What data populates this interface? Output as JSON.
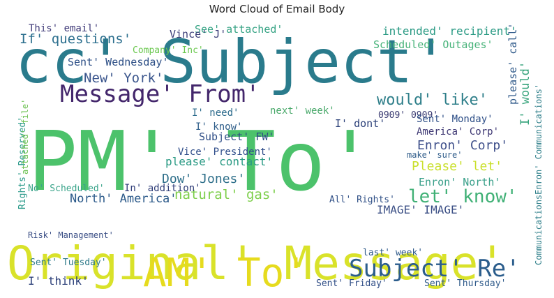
{
  "chart_data": {
    "type": "wordcloud",
    "title": "Word Cloud of Email Body",
    "words": [
      {
        "text": "cc' Subject'",
        "size": 86,
        "color": "#2a7b8c"
      },
      {
        "text": "PM' To'",
        "size": 118,
        "color": "#4cc26b"
      },
      {
        "text": "Original' Message'",
        "size": 66,
        "color": "#d9e22a"
      },
      {
        "text": "AM' To'",
        "size": 56,
        "color": "#e6db1e"
      },
      {
        "text": "Message' From'",
        "size": 34,
        "color": "#43266b"
      },
      {
        "text": "Subject' Re'",
        "size": 34,
        "color": "#2b5d8c"
      },
      {
        "text": "let' know'",
        "size": 26,
        "color": "#3fb075"
      },
      {
        "text": "would' like'",
        "size": 22,
        "color": "#2f7f8a"
      },
      {
        "text": "Enron' Corp'",
        "size": 18,
        "color": "#3e4f8a"
      },
      {
        "text": "Please' let'",
        "size": 18,
        "color": "#c9df2a"
      },
      {
        "text": "natural' gas'",
        "size": 19,
        "color": "#7cce49"
      },
      {
        "text": "Dow' Jones'",
        "size": 18,
        "color": "#2e6f8a"
      },
      {
        "text": "North' America'",
        "size": 17,
        "color": "#2c5a8a"
      },
      {
        "text": "IMAGE' IMAGE'",
        "size": 16,
        "color": "#3b4f85"
      },
      {
        "text": "New' York'",
        "size": 19,
        "color": "#3a558c"
      },
      {
        "text": "If' questions'",
        "size": 19,
        "color": "#2c6f8e"
      },
      {
        "text": "intended' recipient'",
        "size": 16,
        "color": "#2a9a84"
      },
      {
        "text": "Scheduled' Outages'",
        "size": 15,
        "color": "#48b37a"
      },
      {
        "text": "See' attached'",
        "size": 15,
        "color": "#36a384"
      },
      {
        "text": "Sent' Wednesday'",
        "size": 15,
        "color": "#2d4f86"
      },
      {
        "text": "Company' Inc'",
        "size": 13,
        "color": "#6bc84f"
      },
      {
        "text": "Vince' J'",
        "size": 15,
        "color": "#3b3d78"
      },
      {
        "text": "This' email'",
        "size": 14,
        "color": "#3f3a78"
      },
      {
        "text": "Subject' FW'",
        "size": 15,
        "color": "#2e4d86"
      },
      {
        "text": "Vice' President'",
        "size": 14,
        "color": "#2f4d8a"
      },
      {
        "text": "please' contact'",
        "size": 16,
        "color": "#2a9a84"
      },
      {
        "text": "I' need'",
        "size": 14,
        "color": "#2c6b8c"
      },
      {
        "text": "I' know'",
        "size": 14,
        "color": "#2f5e8a"
      },
      {
        "text": "next' week'",
        "size": 14,
        "color": "#4aa96b"
      },
      {
        "text": "I' dont'",
        "size": 15,
        "color": "#2a3f78"
      },
      {
        "text": "0909' 0909'",
        "size": 13,
        "color": "#3a3b72"
      },
      {
        "text": "Sent' Monday'",
        "size": 14,
        "color": "#2c4d86"
      },
      {
        "text": "America' Corp'",
        "size": 14,
        "color": "#3c3672"
      },
      {
        "text": "make' sure'",
        "size": 12,
        "color": "#2f5c8a"
      },
      {
        "text": "Enron' North'",
        "size": 15,
        "color": "#3aa08a"
      },
      {
        "text": "All' Rights'",
        "size": 13,
        "color": "#2f4f86"
      },
      {
        "text": "In' addition'",
        "size": 14,
        "color": "#2f3d78"
      },
      {
        "text": "No' Scheduled'",
        "size": 13,
        "color": "#3aa48a"
      },
      {
        "text": "Rights' Reserved'",
        "size": 13,
        "color": "#2b9a8a"
      },
      {
        "text": "attached' file'",
        "size": 12,
        "color": "#6ac04f"
      },
      {
        "text": "I' would'",
        "size": 17,
        "color": "#3aa57e"
      },
      {
        "text": "please' call'",
        "size": 15,
        "color": "#2f5a8a"
      },
      {
        "text": "CommunicationsEnron' Communications'",
        "size": 12,
        "color": "#2f7f8a"
      },
      {
        "text": "Risk' Management'",
        "size": 12,
        "color": "#3b4f86"
      },
      {
        "text": "Sent' Tuesday'",
        "size": 13,
        "color": "#2f7a8a"
      },
      {
        "text": "I' think'",
        "size": 16,
        "color": "#2b3f78"
      },
      {
        "text": "last' week'",
        "size": 13,
        "color": "#2f5a8a"
      },
      {
        "text": "Sent' Friday'",
        "size": 13,
        "color": "#2f4d86"
      },
      {
        "text": "Sent' Thursday'",
        "size": 13,
        "color": "#2f5a8a"
      }
    ]
  }
}
